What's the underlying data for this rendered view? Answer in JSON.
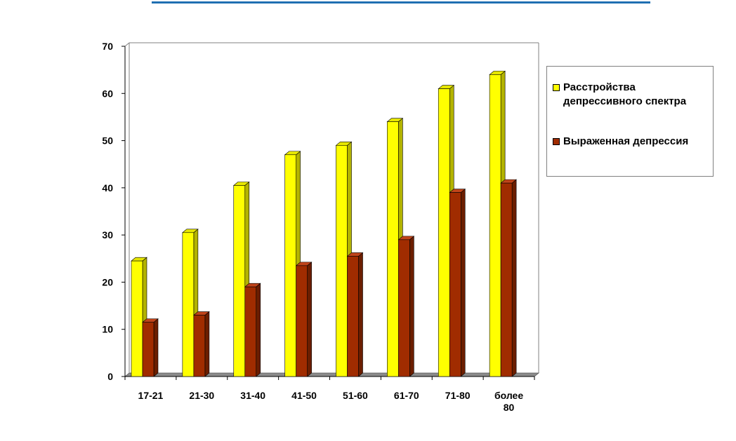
{
  "colors": {
    "top_rule": "#1f6fb2",
    "series1_front": "#ffff00",
    "series1_top": "#e6e600",
    "series1_side": "#b3b300",
    "series2_front": "#a02c00",
    "series2_top": "#c0441a",
    "series2_side": "#6b1e00",
    "floor": "#8c8c8c",
    "axis": "#000000"
  },
  "chart_data": {
    "type": "bar",
    "categories": [
      "17-21",
      "21-30",
      "31-40",
      "41-50",
      "51-60",
      "61-70",
      "71-80",
      "более\n80"
    ],
    "series": [
      {
        "name": "Расстройства\nдепрессивного спектра",
        "values": [
          24.5,
          30.5,
          40.5,
          47,
          49,
          54,
          61,
          64
        ]
      },
      {
        "name": "Выраженная депрессия",
        "values": [
          11.5,
          13,
          19,
          23.5,
          25.5,
          29,
          39,
          41
        ]
      }
    ],
    "y_ticks": [
      "0",
      "10",
      "20",
      "30",
      "40",
      "50",
      "60",
      "70"
    ],
    "ylim": [
      0,
      70
    ],
    "title": "",
    "xlabel": "",
    "ylabel": "",
    "legend_position": "right",
    "grid": false,
    "three_d": true
  }
}
